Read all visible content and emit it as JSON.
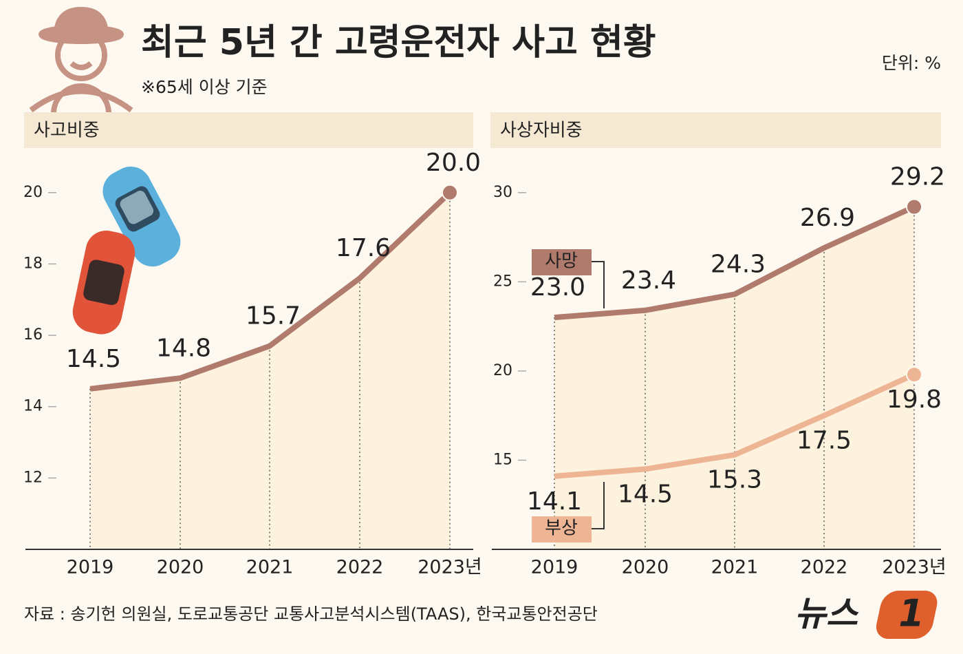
{
  "header": {
    "title": "최근 5년 간 고령운전자 사고 현황",
    "note": "※65세 이상 기준",
    "unit": "단위: %"
  },
  "source": "자료 : 송기헌 의원실, 도로교통공단 교통사고분석시스템(TAAS), 한국교통안전공단",
  "logo": {
    "name": "뉴스",
    "number": "1"
  },
  "chart_data": [
    {
      "type": "line",
      "title": "사고비중",
      "categories": [
        "2019",
        "2020",
        "2021",
        "2022",
        "2023년"
      ],
      "values": [
        14.5,
        14.8,
        15.7,
        17.6,
        20.0
      ],
      "value_labels": [
        "14.5",
        "14.8",
        "15.7",
        "17.6",
        "20.0"
      ],
      "color": "#b07a6c",
      "ylim": [
        10,
        21.25
      ],
      "yticks": [
        12,
        14,
        16,
        18,
        20
      ],
      "grid": false
    },
    {
      "type": "line",
      "title": "사상자비중",
      "categories": [
        "2019",
        "2020",
        "2021",
        "2022",
        "2023년"
      ],
      "series": [
        {
          "name": "사망",
          "color": "#b07a6c",
          "values": [
            23.0,
            23.4,
            24.3,
            26.9,
            29.2
          ],
          "value_labels": [
            "23.0",
            "23.4",
            "24.3",
            "26.9",
            "29.2"
          ]
        },
        {
          "name": "부상",
          "color": "#eeb595",
          "values": [
            14.1,
            14.5,
            15.3,
            17.5,
            19.8
          ],
          "value_labels": [
            "14.1",
            "14.5",
            "15.3",
            "17.5",
            "19.8"
          ]
        }
      ],
      "ylim": [
        10,
        32.5
      ],
      "yticks": [
        15,
        20,
        25,
        30
      ],
      "grid": false
    }
  ]
}
